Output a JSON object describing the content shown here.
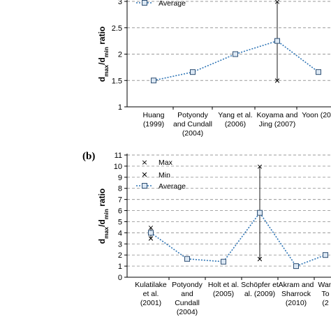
{
  "chart_data": [
    {
      "panel_label": "",
      "type": "line",
      "ylabel": {
        "main": "d",
        "sub1": "max",
        "mid": "/d",
        "sub2": "min",
        "tail": " ratio"
      },
      "ylim": [
        1,
        3
      ],
      "yticks": [
        1,
        1.5,
        2,
        2.5,
        3
      ],
      "grid": true,
      "legend": {
        "placement": "top-left",
        "entries": [
          "Average"
        ]
      },
      "categories": [
        [
          "Huang",
          "(1999)"
        ],
        [
          "Potyondy",
          "and Cundall",
          "(2004)"
        ],
        [
          "Yang et al.",
          "(2006)"
        ],
        [
          "Koyama and",
          "Jing (2007)"
        ],
        [
          "Yoon (200"
        ]
      ],
      "series": [
        {
          "name": "Average",
          "values": [
            1.5,
            1.66,
            2.0,
            2.25,
            1.66
          ]
        }
      ],
      "ranges": [
        {
          "index": 3,
          "max": 3.0,
          "min": 1.5
        }
      ]
    },
    {
      "panel_label": "(b)",
      "type": "line",
      "ylabel": {
        "main": "d",
        "sub1": "max",
        "mid": "/d",
        "sub2": "min",
        "tail": " ratio"
      },
      "ylim": [
        0,
        11
      ],
      "yticks": [
        0,
        1,
        2,
        3,
        4,
        5,
        6,
        7,
        8,
        9,
        10,
        11
      ],
      "grid": true,
      "legend": {
        "placement": "top-left",
        "entries": [
          "Max",
          "Min",
          "Average"
        ]
      },
      "categories": [
        [
          "Kulatilake",
          "et al.",
          "(2001)"
        ],
        [
          "Potyondy",
          "and",
          "Cundall",
          "(2004)"
        ],
        [
          "Holt et al.",
          "(2005)"
        ],
        [
          "Schöpfer et",
          "al. (2009)"
        ],
        [
          "Akram and",
          "Sharrock",
          "(2010)"
        ],
        [
          "Wan",
          "To",
          "(2"
        ]
      ],
      "series": [
        {
          "name": "Average",
          "values": [
            4.0,
            1.65,
            1.4,
            5.8,
            1.0,
            2.0
          ]
        }
      ],
      "ranges": [
        {
          "index": 0,
          "max": 4.5,
          "min": 3.5
        },
        {
          "index": 3,
          "max": 10.0,
          "min": 1.65
        }
      ]
    }
  ]
}
